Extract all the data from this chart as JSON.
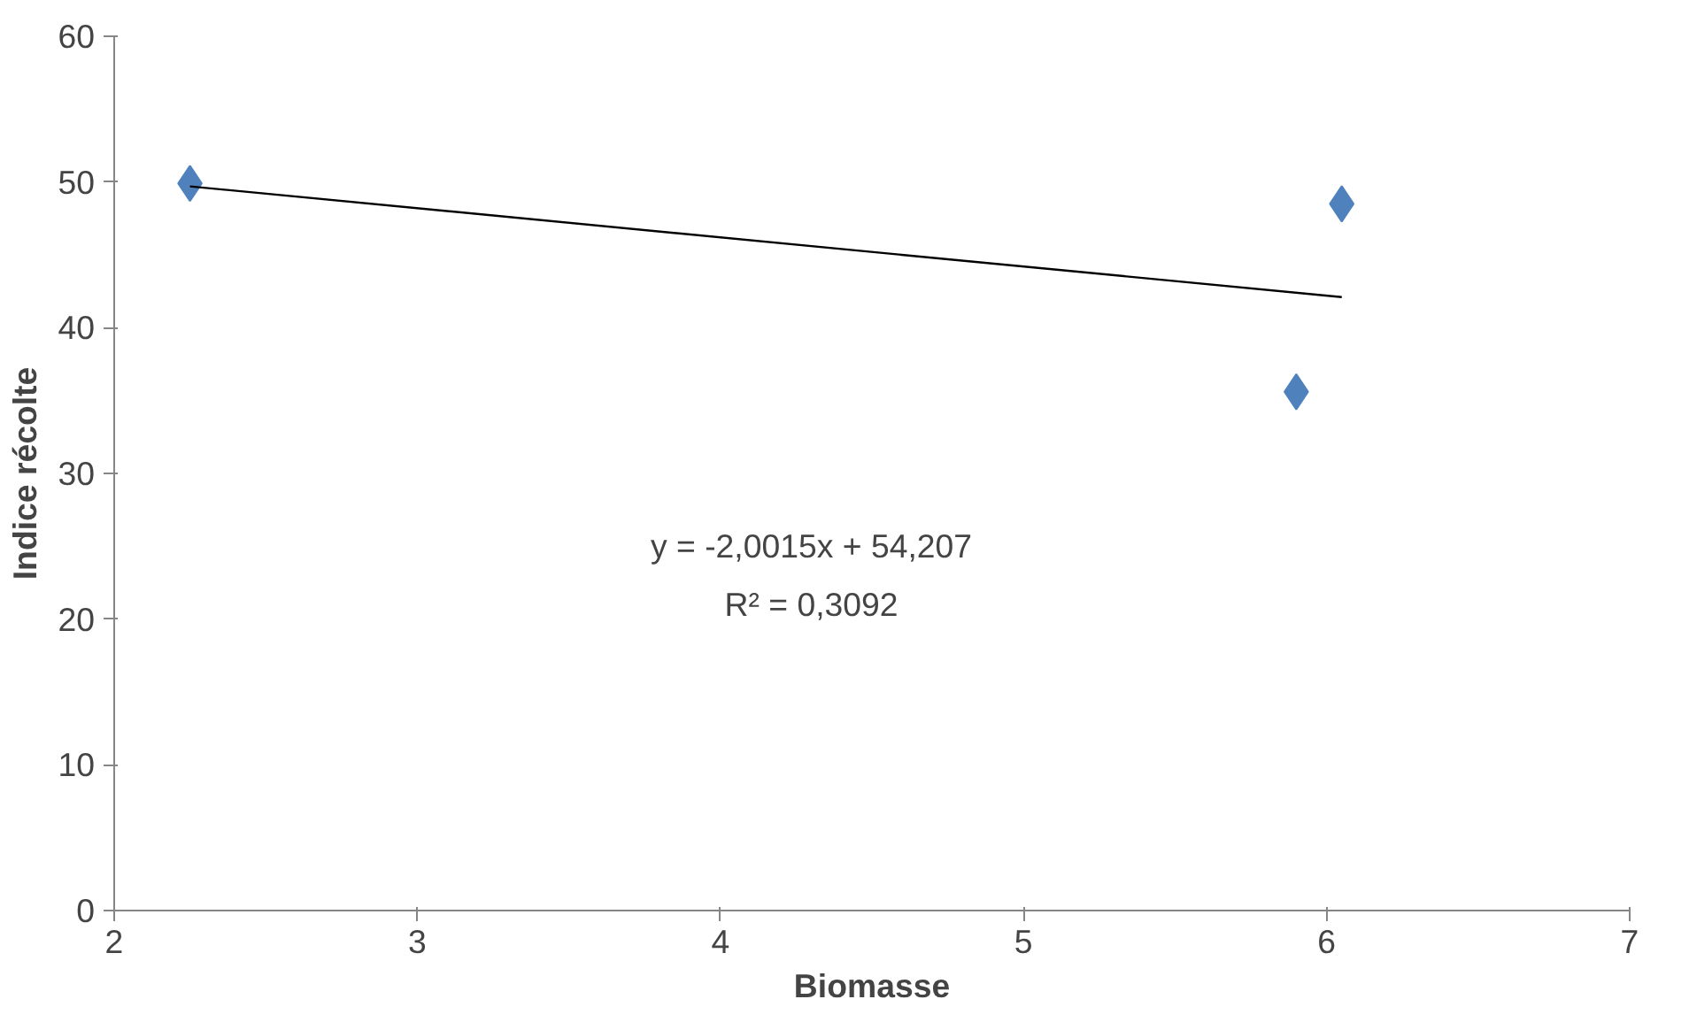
{
  "chart_data": {
    "type": "scatter",
    "xlabel": "Biomasse",
    "ylabel": "Indice récolte",
    "series": [
      {
        "color": "#4f81bd",
        "marker": "diamond",
        "x": [
          2.25,
          5.9,
          6.05
        ],
        "values": [
          49.9,
          35.6,
          48.5
        ]
      },
      {
        "type": "line",
        "color": "#000000",
        "marker": "none",
        "x": [
          2.25,
          6.05
        ],
        "values": [
          49.7,
          42.1
        ]
      }
    ],
    "annotations": [
      "y = -2,0015x + 54,207",
      "R² = 0,3092"
    ],
    "xlim": [
      2,
      7
    ],
    "xticks": [
      2,
      3,
      4,
      5,
      6,
      7
    ],
    "ylim": [
      0,
      60
    ],
    "yticks": [
      0,
      10,
      20,
      30,
      40,
      50,
      60
    ],
    "grid": false
  }
}
